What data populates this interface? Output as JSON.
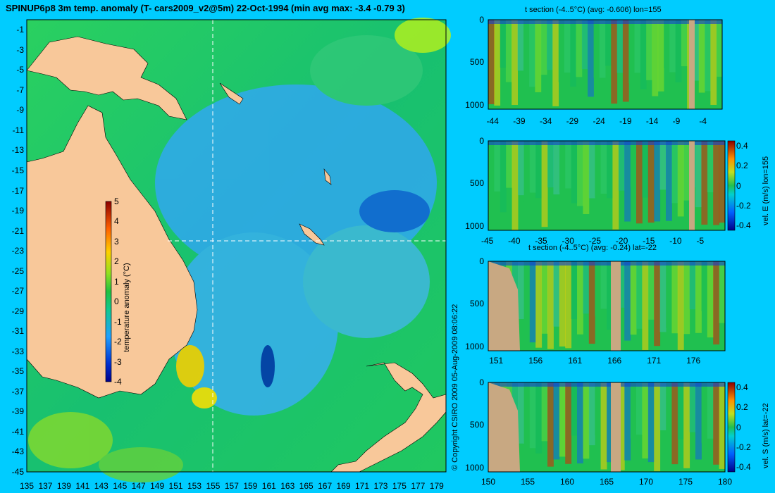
{
  "title": "SPINUP6p8 3m temp. anomaly (T- cars2009_v2@5m) 22-Oct-1994 (min avg max: -3.4 -0.79 3)",
  "copyright": "© Copyright CSIRO 2009   05-Aug-2009 08:06:22",
  "colors": {
    "background": "#00ccff",
    "land": "#f8c89a",
    "section_land": "#c8a882",
    "ocean_base": "#1ec850"
  },
  "chart_data": [
    {
      "type": "heatmap",
      "name": "map",
      "xlabel": "",
      "ylabel": "",
      "xlim": [
        135,
        180
      ],
      "ylim": [
        -45,
        0
      ],
      "x_ticks": [
        "135",
        "137",
        "139",
        "141",
        "143",
        "145",
        "147",
        "149",
        "151",
        "153",
        "155",
        "157",
        "159",
        "161",
        "163",
        "165",
        "167",
        "169",
        "171",
        "173",
        "175",
        "177",
        "179"
      ],
      "y_ticks": [
        "-1",
        "-3",
        "-5",
        "-7",
        "-9",
        "-11",
        "-13",
        "-15",
        "-17",
        "-19",
        "-21",
        "-23",
        "-25",
        "-27",
        "-29",
        "-31",
        "-33",
        "-35",
        "-37",
        "-39",
        "-41",
        "-43",
        "-45"
      ],
      "section_lon": 155,
      "section_lat": -22,
      "colorbar": {
        "label": "temperature anomaly (°C)",
        "ticks": [
          "5",
          "4",
          "3",
          "2",
          "1",
          "0",
          "-1",
          "-2",
          "-3",
          "-4"
        ],
        "range": [
          -4,
          5
        ]
      }
    },
    {
      "type": "heatmap",
      "name": "t-section-lon",
      "title": "t section (-4..5°C) (avg: -0.606) lon=155",
      "x_ticks": [
        "-44",
        "-39",
        "-34",
        "-29",
        "-24",
        "-19",
        "-14",
        "-9",
        "-4"
      ],
      "y_ticks": [
        "0",
        "500",
        "1000"
      ],
      "xlim": [
        -45,
        -1
      ],
      "ylim": [
        1050,
        0
      ]
    },
    {
      "type": "heatmap",
      "name": "vel-e-section",
      "title": "",
      "x_ticks": [
        "-45",
        "-40",
        "-35",
        "-30",
        "-25",
        "-20",
        "-15",
        "-10",
        "-5"
      ],
      "y_ticks": [
        "0",
        "500",
        "1000"
      ],
      "xlim": [
        -45,
        -1
      ],
      "ylim": [
        1050,
        0
      ],
      "colorbar": {
        "label": "vel. E (m/s) lon=155",
        "ticks": [
          "0.4",
          "0.2",
          "0",
          "-0.2",
          "-0.4"
        ],
        "range": [
          -0.45,
          0.45
        ]
      }
    },
    {
      "type": "heatmap",
      "name": "t-section-lat",
      "title": "t section (-4..5°C) (avg: -0.24) lat=-22",
      "x_ticks": [
        "151",
        "156",
        "161",
        "166",
        "171",
        "176"
      ],
      "y_ticks": [
        "0",
        "500",
        "1000"
      ],
      "xlim": [
        150,
        180
      ],
      "ylim": [
        1050,
        0
      ]
    },
    {
      "type": "heatmap",
      "name": "vel-s-section",
      "title": "",
      "x_ticks": [
        "150",
        "155",
        "160",
        "165",
        "170",
        "175",
        "180"
      ],
      "y_ticks": [
        "0",
        "500",
        "1000"
      ],
      "xlim": [
        150,
        180
      ],
      "ylim": [
        1050,
        0
      ],
      "colorbar": {
        "label": "vel. S (m/s) lat=-22",
        "ticks": [
          "0.4",
          "0.2",
          "0",
          "-0.2",
          "-0.4"
        ],
        "range": [
          -0.45,
          0.45
        ]
      }
    }
  ]
}
